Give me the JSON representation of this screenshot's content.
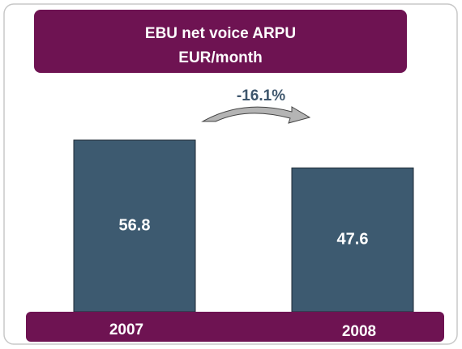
{
  "chart_data": {
    "type": "bar",
    "title": "EBU net voice ARPU",
    "subtitle": "EUR/month",
    "categories": [
      "2007",
      "2008"
    ],
    "values": [
      56.8,
      47.6
    ],
    "color": "#3d5a70",
    "annotation": "-16.1%"
  }
}
